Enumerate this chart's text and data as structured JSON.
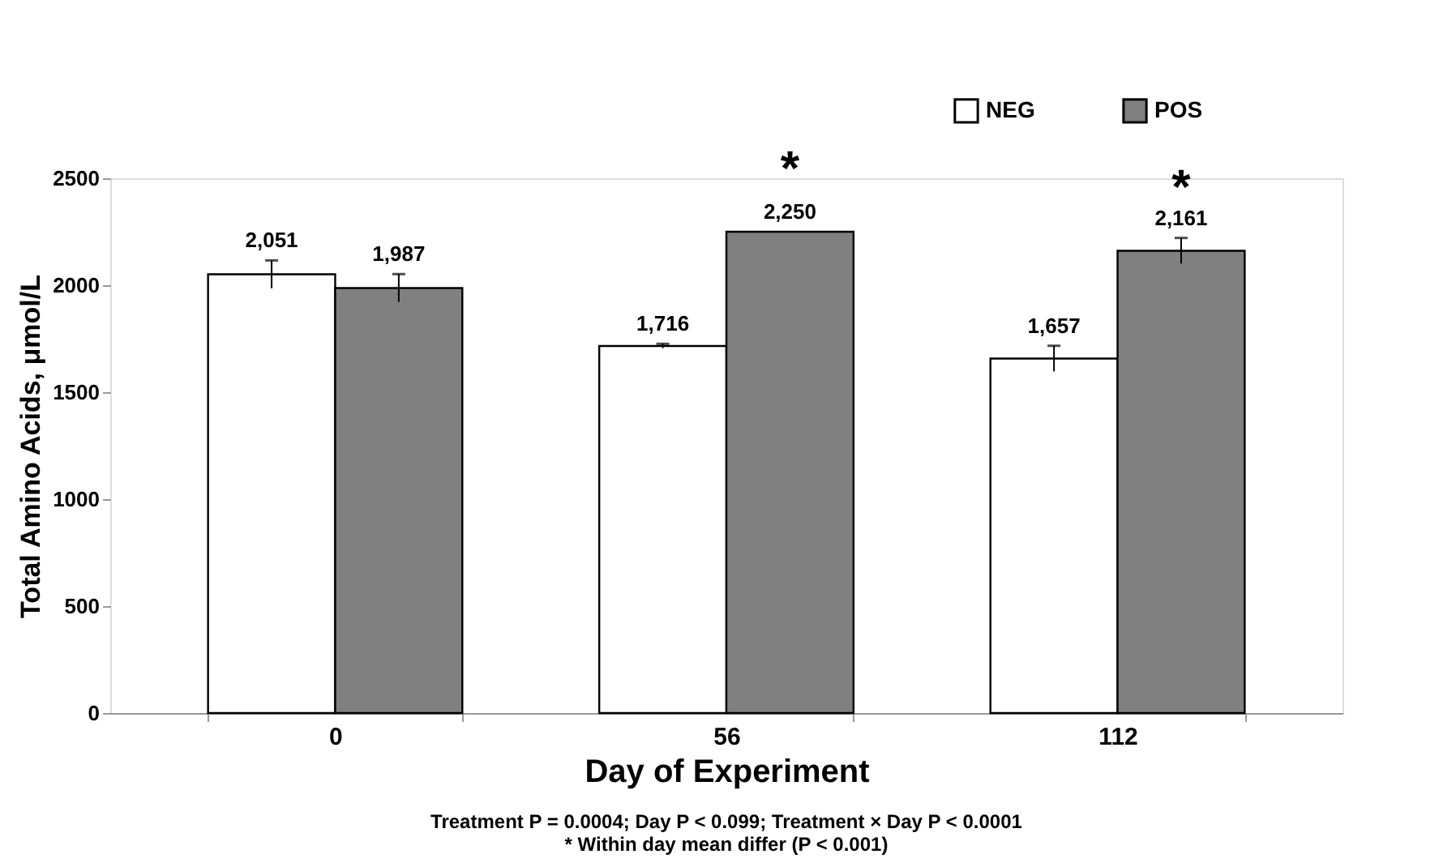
{
  "chart_data": {
    "type": "bar",
    "xlabel": "Day of Experiment",
    "ylabel": "Total Amino Acids, μmol/L",
    "categories": [
      "0",
      "56",
      "112"
    ],
    "series": [
      {
        "name": "NEG",
        "color": "#ffffff",
        "values": [
          2051,
          1716,
          1657
        ],
        "errors": [
          65,
          10,
          60
        ],
        "value_labels": [
          "2,051",
          "1,716",
          "1,657"
        ]
      },
      {
        "name": "POS",
        "color": "#808080",
        "values": [
          1987,
          2250,
          2161
        ],
        "errors": [
          65,
          null,
          60
        ],
        "value_labels": [
          "1,987",
          "2,250",
          "2,161"
        ]
      }
    ],
    "ylim": [
      0,
      2500
    ],
    "yticks": [
      0,
      500,
      1000,
      1500,
      2000,
      2500
    ],
    "grid": false,
    "legend": "top right",
    "annotations": [
      {
        "text": "*",
        "x": "56",
        "y": 2250
      },
      {
        "text": "*",
        "x": "112",
        "y": 2161
      },
      "Treatment P = 0.0004; Day P < 0.099; Treatment × Day  P < 0.0001",
      "* Within day mean differ (P < 0.001)"
    ]
  }
}
